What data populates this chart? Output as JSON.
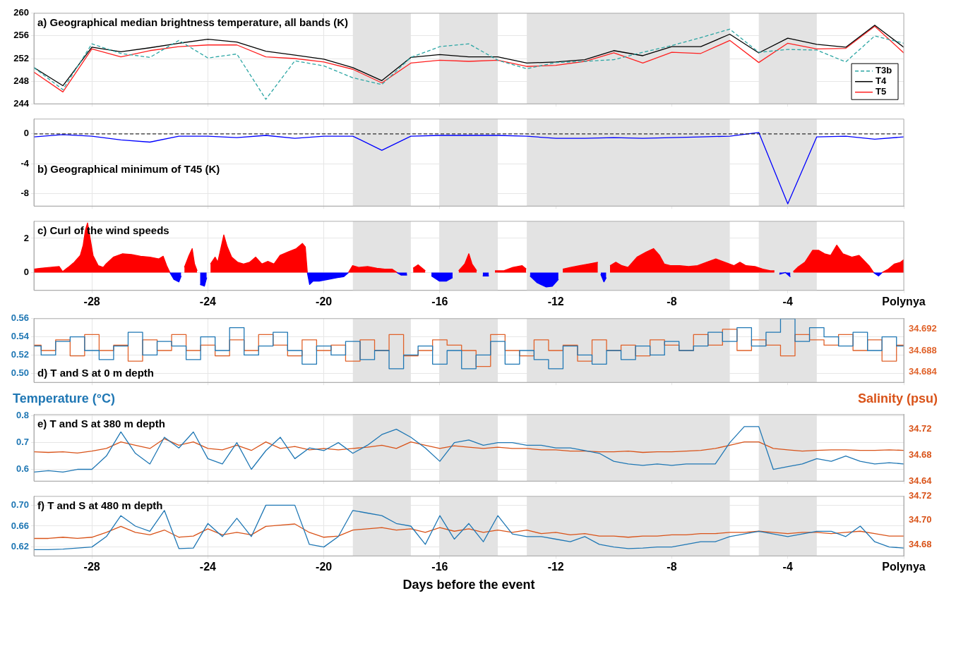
{
  "chart_data": [
    {
      "type": "line",
      "title": "a) Geographical median brightness temperature, all bands (K)",
      "x": [
        -30,
        -29,
        -28,
        -27,
        -26,
        -25,
        -24,
        -23,
        -22,
        -21,
        -20,
        -19,
        -18,
        -17,
        -16,
        -15,
        -14,
        -13,
        -12,
        -11,
        -10,
        -9,
        -8,
        -7,
        -6,
        -5,
        -4,
        -3,
        -2,
        -1,
        0
      ],
      "xlim": [
        -30,
        0
      ],
      "xticks": [
        -28,
        -24,
        -20,
        -16,
        -12,
        -8,
        -4,
        0
      ],
      "ylim": [
        244,
        260
      ],
      "yticks": [
        244,
        248,
        252,
        256,
        260
      ],
      "grid": true,
      "tick_labels": "y",
      "legend": "bottom right",
      "series": [
        {
          "name": "T3b",
          "color": "#2ca6a4",
          "line_style": "dashed",
          "values": [
            250.4,
            246.5,
            254.6,
            252.9,
            252.2,
            255.2,
            252.1,
            252.8,
            244.8,
            251.6,
            250.7,
            248.6,
            247.4,
            252.2,
            254.1,
            254.6,
            251.7,
            250.2,
            251.3,
            251.5,
            251.8,
            253.1,
            254.3,
            255.7,
            257.2,
            253.1,
            253.6,
            253.5,
            251.4,
            256.0,
            254.7
          ]
        },
        {
          "name": "T4",
          "color": "#000000",
          "values": [
            250.4,
            247.2,
            254.0,
            253.2,
            253.9,
            254.7,
            255.4,
            254.9,
            253.3,
            252.6,
            251.9,
            250.4,
            248.1,
            252.2,
            252.7,
            252.3,
            252.3,
            251.2,
            251.4,
            251.8,
            253.4,
            252.5,
            254.1,
            254.1,
            256.3,
            253.0,
            255.6,
            254.5,
            254.0,
            257.9,
            254.0
          ]
        },
        {
          "name": "T5",
          "color": "#ff2020",
          "values": [
            249.6,
            246.1,
            253.7,
            252.3,
            253.4,
            254.1,
            254.4,
            254.4,
            252.3,
            252.0,
            251.4,
            250.1,
            247.7,
            251.2,
            251.7,
            251.5,
            251.7,
            250.6,
            250.8,
            251.5,
            253.0,
            251.2,
            253.1,
            252.9,
            255.2,
            251.3,
            254.7,
            253.7,
            253.8,
            257.7,
            253.0
          ]
        }
      ],
      "bands": [
        {
          "axis": "x",
          "from": -19,
          "to": -17,
          "color": "#e3e3e3"
        },
        {
          "axis": "x",
          "from": -16,
          "to": -14,
          "color": "#e3e3e3"
        },
        {
          "axis": "x",
          "from": -13,
          "to": -6,
          "color": "#e3e3e3"
        },
        {
          "axis": "x",
          "from": -5,
          "to": -3,
          "color": "#e3e3e3"
        }
      ]
    },
    {
      "type": "line",
      "title": "b) Geographical minimum of T45 (K)",
      "x": [
        -30,
        -29,
        -28,
        -27,
        -26,
        -25,
        -24,
        -23,
        -22,
        -21,
        -20,
        -19,
        -18,
        -17,
        -16,
        -15,
        -14,
        -13,
        -12,
        -11,
        -10,
        -9,
        -8,
        -7,
        -6,
        -5,
        -4,
        -3,
        -2,
        -1,
        0
      ],
      "xlim": [
        -30,
        0
      ],
      "xticks": [
        -28,
        -24,
        -20,
        -16,
        -12,
        -8,
        -4,
        0
      ],
      "ylim": [
        -9.7,
        2
      ],
      "yticks": [
        -8,
        -4,
        0
      ],
      "grid": true,
      "tick_labels": "y",
      "series": [
        {
          "color": "#0000ff",
          "values": [
            -0.4,
            -0.1,
            -0.3,
            -0.8,
            -1.1,
            -0.3,
            -0.3,
            -0.5,
            -0.2,
            -0.6,
            -0.3,
            -0.3,
            -2.2,
            -0.3,
            -0.2,
            -0.2,
            -0.2,
            -0.3,
            -0.6,
            -0.6,
            -0.5,
            -0.6,
            -0.5,
            -0.4,
            -0.3,
            0.2,
            -9.4,
            -0.4,
            -0.3,
            -0.7,
            -0.4
          ]
        }
      ],
      "ref_lines": [
        {
          "axis": "y",
          "value": 0,
          "color": "#000000",
          "line_style": "dashed"
        }
      ],
      "bands": [
        {
          "axis": "x",
          "from": -19,
          "to": -17,
          "color": "#e3e3e3"
        },
        {
          "axis": "x",
          "from": -16,
          "to": -14,
          "color": "#e3e3e3"
        },
        {
          "axis": "x",
          "from": -13,
          "to": -6,
          "color": "#e3e3e3"
        },
        {
          "axis": "x",
          "from": -5,
          "to": -3,
          "color": "#e3e3e3"
        }
      ]
    },
    {
      "type": "area",
      "title": "c) Curl of the wind speeds",
      "xlim": [
        -30,
        0
      ],
      "xticks": [
        -28,
        -24,
        -20,
        -16,
        -12,
        -8,
        -4,
        {
          "value": 0,
          "label": "Polynya"
        }
      ],
      "ylim": [
        -1.05,
        3
      ],
      "yticks": [
        0,
        2
      ],
      "grid": true,
      "x": [
        -30,
        -29.76,
        -29.45,
        -29.13,
        -29.01,
        -28.82,
        -28.61,
        -28.4,
        -28.3,
        -28.22,
        -28.15,
        -28.07,
        -27.96,
        -27.78,
        -27.61,
        -27.51,
        -27.26,
        -26.94,
        -26.63,
        -26.32,
        -26,
        -25.69,
        -25.54,
        -25.42,
        -25.31,
        -25.17,
        -25,
        -24.92,
        -24.81,
        -24.65,
        -24.54,
        -24.46,
        -24.37,
        -24.27,
        -24.12,
        -24.04,
        -23.91,
        -23.75,
        -23.66,
        -23.58,
        -23.45,
        -23.33,
        -23.18,
        -22.97,
        -22.77,
        -22.56,
        -22.35,
        -22.14,
        -21.93,
        -21.72,
        -21.51,
        -21.24,
        -20.95,
        -20.74,
        -20.64,
        -20.57,
        -20.49,
        -20.37,
        -20.16,
        -19.84,
        -19.53,
        -19.32,
        -19.15,
        -19.01,
        -18.8,
        -18.49,
        -18.17,
        -17.9,
        -17.65,
        -17.48,
        -17.34,
        -17.13,
        -16.92,
        -16.75,
        -16.5,
        -16.29,
        -16.02,
        -15.77,
        -15.56,
        -15.35,
        -15.14,
        -15,
        -14.89,
        -14.73,
        -14.52,
        -14.31,
        -14.1,
        -13.79,
        -13.48,
        -13.16,
        -13.02,
        -12.89,
        -12.64,
        -12.33,
        -12.12,
        -11.91,
        -11.76,
        -11.49,
        -11.18,
        -10.87,
        -10.55,
        -10.45,
        -10.34,
        -10.26,
        -10.13,
        -9.93,
        -9.72,
        -9.51,
        -9.2,
        -8.88,
        -8.63,
        -8.42,
        -8.26,
        -8.05,
        -7.73,
        -7.42,
        -7.11,
        -6.8,
        -6.48,
        -6.17,
        -5.86,
        -5.65,
        -5.44,
        -5.13,
        -4.86,
        -4.6,
        -4.46,
        -4.29,
        -4.08,
        -3.91,
        -3.81,
        -3.66,
        -3.41,
        -3.14,
        -2.93,
        -2.73,
        -2.52,
        -2.31,
        -2.1,
        -1.79,
        -1.54,
        -1.37,
        -1.2,
        -1.04,
        -0.87,
        -0.74,
        -0.53,
        -0.32,
        -0.11,
        0
      ],
      "series": [
        {
          "color": "#ff0000",
          "values": [
            0.2,
            0.25,
            0.3,
            0.35,
            0.05,
            0.3,
            0.6,
            1.0,
            1.6,
            2.5,
            2.9,
            2.1,
            1.0,
            0.4,
            0.3,
            0.5,
            0.9,
            1.1,
            1.05,
            0.95,
            0.9,
            0.8,
            0.95,
            0.4,
            0.0,
            null,
            null,
            null,
            0.3,
            1.0,
            1.4,
            0.5,
            0.1,
            null,
            null,
            null,
            0.5,
            0.9,
            0.6,
            1.2,
            2.2,
            1.5,
            0.9,
            0.6,
            0.5,
            0.6,
            0.9,
            0.5,
            0.65,
            0.5,
            1.0,
            1.2,
            1.4,
            1.7,
            1.5,
            0.0,
            null,
            null,
            null,
            null,
            null,
            null,
            0.0,
            0.4,
            0.3,
            0.35,
            0.25,
            0.2,
            0.2,
            0.0,
            null,
            null,
            0.25,
            0.45,
            0.1,
            null,
            null,
            null,
            null,
            0.1,
            0.5,
            1.1,
            0.5,
            0.1,
            null,
            null,
            0.1,
            0.1,
            0.3,
            0.4,
            0.2,
            null,
            null,
            null,
            null,
            null,
            0.2,
            0.3,
            0.4,
            0.5,
            0.6,
            null,
            null,
            null,
            0.4,
            0.6,
            0.4,
            0.3,
            0.9,
            1.2,
            1.4,
            1.0,
            0.5,
            0.4,
            0.4,
            0.35,
            0.4,
            0.6,
            0.8,
            0.6,
            0.4,
            0.6,
            0.4,
            0.35,
            0.2,
            0.1,
            0.1,
            null,
            null,
            null,
            0.05,
            0.3,
            0.6,
            1.3,
            1.3,
            1.1,
            1.0,
            1.6,
            1.1,
            0.9,
            1.0,
            0.7,
            0.4,
            0.0,
            null,
            0.0,
            0.2,
            0.5,
            0.6,
            0.75
          ]
        },
        {
          "color": "#0000ff",
          "values": [
            null,
            null,
            null,
            null,
            null,
            null,
            null,
            null,
            null,
            null,
            null,
            null,
            null,
            null,
            null,
            null,
            null,
            null,
            null,
            null,
            null,
            null,
            null,
            null,
            0.0,
            -0.4,
            -0.55,
            -0.2,
            null,
            null,
            null,
            null,
            null,
            -0.7,
            -0.8,
            -0.3,
            null,
            null,
            null,
            null,
            null,
            null,
            null,
            null,
            null,
            null,
            null,
            null,
            null,
            null,
            null,
            null,
            null,
            null,
            null,
            0.0,
            -0.7,
            -0.5,
            -0.5,
            -0.4,
            -0.3,
            -0.25,
            0.0,
            null,
            null,
            null,
            null,
            null,
            null,
            0.0,
            -0.15,
            -0.15,
            null,
            null,
            null,
            -0.2,
            -0.5,
            -0.5,
            -0.3,
            null,
            null,
            null,
            null,
            null,
            -0.2,
            -0.2,
            null,
            null,
            null,
            null,
            null,
            -0.2,
            -0.6,
            -0.85,
            -0.8,
            -0.4,
            null,
            null,
            null,
            null,
            null,
            -0.1,
            -0.55,
            -0.3,
            null,
            null,
            null,
            null,
            null,
            null,
            null,
            null,
            null,
            null,
            null,
            null,
            null,
            null,
            null,
            null,
            null,
            null,
            null,
            null,
            null,
            null,
            null,
            -0.1,
            0.0,
            -0.25,
            null,
            null,
            null,
            null,
            null,
            null,
            null,
            null,
            null,
            null,
            null,
            null,
            null,
            0.0,
            -0.2,
            0.0,
            null,
            null,
            null,
            null
          ]
        }
      ],
      "bands": [
        {
          "axis": "x",
          "from": -19,
          "to": -17,
          "color": "#e3e3e3"
        },
        {
          "axis": "x",
          "from": -16,
          "to": -14,
          "color": "#e3e3e3"
        },
        {
          "axis": "x",
          "from": -13,
          "to": -6,
          "color": "#e3e3e3"
        },
        {
          "axis": "x",
          "from": -5,
          "to": -3,
          "color": "#e3e3e3"
        }
      ]
    },
    {
      "type": "step",
      "title": "d) T and S at 0 m depth",
      "xlim": [
        -30,
        0
      ],
      "xticks": [
        -28,
        -24,
        -20,
        -16,
        -12,
        -8,
        -4,
        0
      ],
      "ylim": [
        0.49,
        0.56
      ],
      "yticks": [
        {
          "value": 0.5,
          "label": "0.50"
        },
        0.52,
        0.54,
        0.56
      ],
      "y2lim": [
        34.682,
        34.694
      ],
      "y2ticks": [
        34.684,
        34.688,
        34.692
      ],
      "grid": true,
      "tick_labels": "y",
      "x": [
        -30,
        -29.5,
        -29,
        -28.5,
        -28,
        -27.5,
        -27,
        -26.5,
        -26,
        -25.5,
        -25,
        -24.5,
        -24,
        -23.5,
        -23,
        -22.5,
        -22,
        -21.5,
        -21,
        -20.5,
        -20,
        -19.5,
        -19,
        -18.5,
        -18,
        -17.5,
        -17,
        -16.5,
        -16,
        -15.5,
        -15,
        -14.5,
        -14,
        -13.5,
        -13,
        -12.5,
        -12,
        -11.5,
        -11,
        -10.5,
        -10,
        -9.5,
        -9,
        -8.5,
        -8,
        -7.5,
        -7,
        -6.5,
        -6,
        -5.5,
        -5,
        -4.5,
        -4,
        -3.5,
        -3,
        -2.5,
        -2,
        -1.5,
        -1,
        -0.5,
        0
      ],
      "series": [
        {
          "color": "#1f77b4",
          "values": [
            0.53,
            0.52,
            0.535,
            0.54,
            0.525,
            0.515,
            0.53,
            0.545,
            0.52,
            0.535,
            0.53,
            0.515,
            0.54,
            0.525,
            0.55,
            0.52,
            0.53,
            0.545,
            0.525,
            0.51,
            0.53,
            0.52,
            0.535,
            0.515,
            0.525,
            0.505,
            0.52,
            0.53,
            0.51,
            0.525,
            0.505,
            0.52,
            0.535,
            0.51,
            0.525,
            0.515,
            0.505,
            0.53,
            0.52,
            0.51,
            0.525,
            0.515,
            0.53,
            0.52,
            0.535,
            0.525,
            0.53,
            0.545,
            0.535,
            0.55,
            0.53,
            0.545,
            0.56,
            0.535,
            0.55,
            0.54,
            0.53,
            0.545,
            0.525,
            0.54,
            0.53
          ]
        },
        {
          "color": "#e0622a",
          "axis": "y2",
          "values": [
            34.689,
            34.688,
            34.69,
            34.687,
            34.691,
            34.688,
            34.689,
            34.686,
            34.69,
            34.688,
            34.691,
            34.688,
            34.689,
            34.687,
            34.69,
            34.688,
            34.691,
            34.689,
            34.687,
            34.69,
            34.688,
            34.689,
            34.686,
            34.69,
            34.688,
            34.691,
            34.687,
            34.688,
            34.69,
            34.689,
            34.688,
            34.685,
            34.691,
            34.688,
            34.687,
            34.69,
            34.688,
            34.689,
            34.686,
            34.69,
            34.688,
            34.689,
            34.687,
            34.69,
            34.689,
            34.688,
            34.691,
            34.689,
            34.692,
            34.688,
            34.69,
            34.689,
            34.687,
            34.691,
            34.69,
            34.689,
            34.691,
            34.688,
            34.69,
            34.686,
            34.689
          ]
        }
      ],
      "bands": [
        {
          "axis": "x",
          "from": -19,
          "to": -17,
          "color": "#e3e3e3"
        },
        {
          "axis": "x",
          "from": -16,
          "to": -14,
          "color": "#e3e3e3"
        },
        {
          "axis": "x",
          "from": -13,
          "to": -6,
          "color": "#e3e3e3"
        },
        {
          "axis": "x",
          "from": -5,
          "to": -3,
          "color": "#e3e3e3"
        }
      ]
    },
    {
      "type": "line",
      "title": "e) T and S at 380 m depth",
      "ylabel": "Temperature (°C)",
      "y2label": "Salinity (psu)",
      "xlim": [
        -30,
        0
      ],
      "xticks": [
        -28,
        -24,
        -20,
        -16,
        -12,
        -8,
        -4,
        0
      ],
      "ylim": [
        0.556,
        0.805
      ],
      "yticks": [
        0.6,
        0.7,
        0.8
      ],
      "y2lim": [
        34.64,
        34.742
      ],
      "y2ticks": [
        34.64,
        34.68,
        34.72
      ],
      "grid": true,
      "tick_labels": "y",
      "x": [
        -30,
        -29.5,
        -29,
        -28.5,
        -28,
        -27.5,
        -27,
        -26.5,
        -26,
        -25.5,
        -25,
        -24.5,
        -24,
        -23.5,
        -23,
        -22.5,
        -22,
        -21.5,
        -21,
        -20.5,
        -20,
        -19.5,
        -19,
        -18.5,
        -18,
        -17.5,
        -17,
        -16.5,
        -16,
        -15.5,
        -15,
        -14.5,
        -14,
        -13.5,
        -13,
        -12.5,
        -12,
        -11.5,
        -11,
        -10.5,
        -10,
        -9.5,
        -9,
        -8.5,
        -8,
        -7.5,
        -7,
        -6.5,
        -6,
        -5.5,
        -5,
        -4.5,
        -4,
        -3.5,
        -3,
        -2.5,
        -2,
        -1.5,
        -1,
        -0.5,
        0
      ],
      "series": [
        {
          "color": "#1f77b4",
          "values": [
            0.59,
            0.595,
            0.59,
            0.6,
            0.6,
            0.65,
            0.74,
            0.66,
            0.62,
            0.72,
            0.68,
            0.74,
            0.64,
            0.62,
            0.7,
            0.6,
            0.67,
            0.72,
            0.64,
            0.68,
            0.67,
            0.7,
            0.66,
            0.69,
            0.73,
            0.75,
            0.72,
            0.68,
            0.63,
            0.7,
            0.71,
            0.69,
            0.7,
            0.7,
            0.69,
            0.69,
            0.68,
            0.68,
            0.67,
            0.66,
            0.63,
            0.62,
            0.615,
            0.62,
            0.615,
            0.62,
            0.62,
            0.62,
            0.7,
            0.76,
            0.76,
            0.6,
            0.61,
            0.62,
            0.64,
            0.63,
            0.65,
            0.63,
            0.62,
            0.625,
            0.62
          ]
        },
        {
          "color": "#d95319",
          "axis": "y2",
          "values": [
            34.685,
            34.684,
            34.685,
            34.683,
            34.686,
            34.69,
            34.7,
            34.695,
            34.69,
            34.705,
            34.695,
            34.7,
            34.69,
            34.688,
            34.695,
            34.687,
            34.7,
            34.69,
            34.693,
            34.688,
            34.69,
            34.688,
            34.69,
            34.692,
            34.695,
            34.69,
            34.7,
            34.695,
            34.69,
            34.694,
            34.692,
            34.69,
            34.692,
            34.69,
            34.69,
            34.688,
            34.688,
            34.686,
            34.686,
            34.685,
            34.685,
            34.686,
            34.684,
            34.685,
            34.685,
            34.686,
            34.687,
            34.69,
            34.695,
            34.7,
            34.7,
            34.69,
            34.688,
            34.686,
            34.687,
            34.688,
            34.688,
            34.687,
            34.687,
            34.688,
            34.687
          ]
        }
      ],
      "bands": [
        {
          "axis": "x",
          "from": -19,
          "to": -17,
          "color": "#e3e3e3"
        },
        {
          "axis": "x",
          "from": -16,
          "to": -14,
          "color": "#e3e3e3"
        },
        {
          "axis": "x",
          "from": -13,
          "to": -6,
          "color": "#e3e3e3"
        },
        {
          "axis": "x",
          "from": -5,
          "to": -3,
          "color": "#e3e3e3"
        }
      ]
    },
    {
      "type": "line",
      "title": "f) T and S at 480 m depth",
      "xlabel": "Days before the event",
      "xlim": [
        -30,
        0
      ],
      "xticks": [
        -28,
        -24,
        -20,
        -16,
        -12,
        -8,
        -4,
        {
          "value": 0,
          "label": "Polynya"
        }
      ],
      "ylim": [
        0.603,
        0.717
      ],
      "yticks": [
        0.62,
        0.66,
        {
          "value": 0.7,
          "label": "0.70"
        }
      ],
      "y2lim": [
        34.6705,
        34.72
      ],
      "y2ticks": [
        34.68,
        {
          "value": 34.7,
          "label": "34.70"
        },
        34.72
      ],
      "grid": true,
      "x": [
        -30,
        -29.5,
        -29,
        -28.5,
        -28,
        -27.5,
        -27,
        -26.5,
        -26,
        -25.5,
        -25,
        -24.5,
        -24,
        -23.5,
        -23,
        -22.5,
        -22,
        -21.5,
        -21,
        -20.5,
        -20,
        -19.5,
        -19,
        -18.5,
        -18,
        -17.5,
        -17,
        -16.5,
        -16,
        -15.5,
        -15,
        -14.5,
        -14,
        -13.5,
        -13,
        -12.5,
        -12,
        -11.5,
        -11,
        -10.5,
        -10,
        -9.5,
        -9,
        -8.5,
        -8,
        -7.5,
        -7,
        -6.5,
        -6,
        -5.5,
        -5,
        -4.5,
        -4,
        -3.5,
        -3,
        -2.5,
        -2,
        -1.5,
        -1,
        -0.5,
        0
      ],
      "series": [
        {
          "color": "#1f77b4",
          "values": [
            0.615,
            0.615,
            0.616,
            0.618,
            0.62,
            0.64,
            0.68,
            0.66,
            0.65,
            0.69,
            0.617,
            0.618,
            0.665,
            0.64,
            0.675,
            0.64,
            0.7,
            0.7,
            0.7,
            0.625,
            0.62,
            0.64,
            0.69,
            0.685,
            0.68,
            0.665,
            0.66,
            0.625,
            0.68,
            0.635,
            0.665,
            0.63,
            0.68,
            0.645,
            0.64,
            0.64,
            0.635,
            0.63,
            0.64,
            0.625,
            0.62,
            0.617,
            0.618,
            0.62,
            0.62,
            0.625,
            0.63,
            0.63,
            0.64,
            0.645,
            0.65,
            0.645,
            0.64,
            0.645,
            0.65,
            0.65,
            0.64,
            0.66,
            0.63,
            0.62,
            0.618
          ]
        },
        {
          "color": "#d95319",
          "axis": "y2",
          "values": [
            34.685,
            34.685,
            34.686,
            34.685,
            34.686,
            34.69,
            34.695,
            34.69,
            34.688,
            34.692,
            34.686,
            34.687,
            34.693,
            34.688,
            34.69,
            34.688,
            34.695,
            34.696,
            34.697,
            34.69,
            34.686,
            34.687,
            34.692,
            34.693,
            34.694,
            34.692,
            34.693,
            34.69,
            34.694,
            34.691,
            34.693,
            34.69,
            34.692,
            34.69,
            34.692,
            34.689,
            34.69,
            34.688,
            34.689,
            34.687,
            34.687,
            34.686,
            34.687,
            34.687,
            34.688,
            34.688,
            34.689,
            34.689,
            34.69,
            34.69,
            34.691,
            34.69,
            34.689,
            34.69,
            34.69,
            34.689,
            34.69,
            34.691,
            34.689,
            34.687,
            34.687
          ]
        }
      ],
      "bands": [
        {
          "axis": "x",
          "from": -19,
          "to": -17,
          "color": "#e3e3e3"
        },
        {
          "axis": "x",
          "from": -16,
          "to": -14,
          "color": "#e3e3e3"
        },
        {
          "axis": "x",
          "from": -13,
          "to": -6,
          "color": "#e3e3e3"
        },
        {
          "axis": "x",
          "from": -5,
          "to": -3,
          "color": "#e3e3e3"
        }
      ]
    }
  ]
}
